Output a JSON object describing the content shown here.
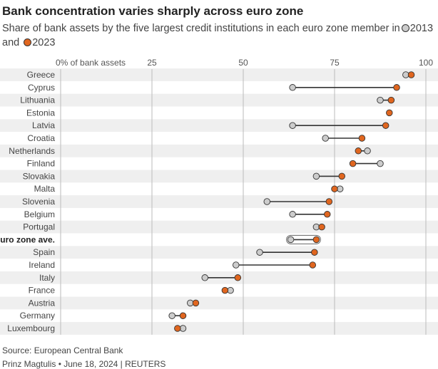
{
  "title": "Bank concentration varies sharply across euro zone",
  "subtitle_text": "Share of bank assets by the five largest credit institutions in each euro zone member in",
  "subtitle_and": "and",
  "colors": {
    "y2013": "#cccccc",
    "y2023": "#e0661f",
    "connector": "#333333",
    "band": "#efefef",
    "grid": "#bbbbbb"
  },
  "chart_data": {
    "type": "dumbbell",
    "xlim": [
      0,
      100
    ],
    "x_ticks": [
      0,
      25,
      50,
      75,
      100
    ],
    "x_tick_labels": [
      "0% of bank assets",
      "25",
      "50",
      "75",
      "100"
    ],
    "legend": [
      "2013",
      "2023"
    ],
    "highlighted_category": "Euro zone ave.",
    "categories": [
      "Greece",
      "Cyprus",
      "Lithuania",
      "Estonia",
      "Latvia",
      "Croatia",
      "Netherlands",
      "Finland",
      "Slovakia",
      "Malta",
      "Slovenia",
      "Belgium",
      "Portugal",
      "Euro zone ave.",
      "Spain",
      "Ireland",
      "Italy",
      "France",
      "Austria",
      "Germany",
      "Luxembourg"
    ],
    "series": [
      {
        "name": "2013",
        "values": [
          94.5,
          63.5,
          87.5,
          null,
          63.5,
          72.5,
          84,
          87.5,
          70,
          76.5,
          56.5,
          63.5,
          70,
          63,
          54.5,
          48,
          39.5,
          46.5,
          35.5,
          30.5,
          33.5
        ]
      },
      {
        "name": "2023",
        "values": [
          96,
          92,
          90.5,
          90,
          89,
          82.5,
          81.5,
          80,
          77,
          75,
          73.5,
          73,
          71.5,
          70,
          69.5,
          69,
          48.5,
          45,
          37,
          33.5,
          32
        ]
      }
    ]
  },
  "source": "Source: European Central Bank",
  "credit": "Prinz Magtulis • June 18, 2024 | REUTERS"
}
